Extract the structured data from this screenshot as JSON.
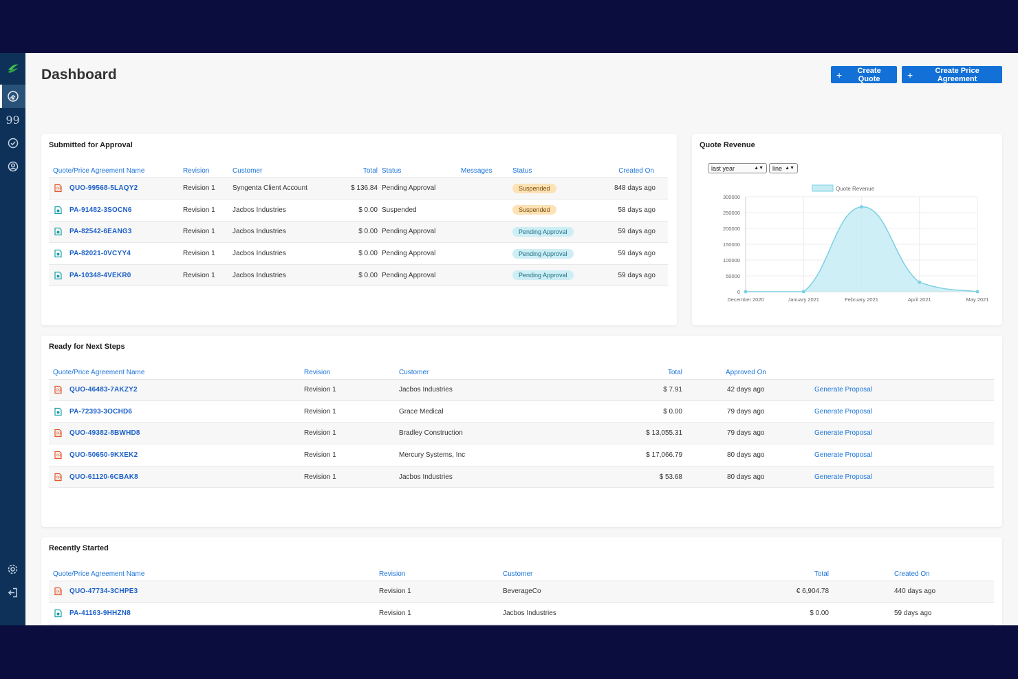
{
  "page": {
    "title": "Dashboard"
  },
  "header": {
    "create_quote_label": "Create Quote",
    "create_price_agreement_label": "Create Price Agreement"
  },
  "sidebar": {
    "items": [
      {
        "icon": "dashboard-icon",
        "active": true
      },
      {
        "icon": "quote-icon",
        "active": false
      },
      {
        "icon": "check-circle-icon",
        "active": false
      },
      {
        "icon": "user-circle-icon",
        "active": false
      }
    ],
    "bottom": [
      {
        "icon": "gear-icon"
      },
      {
        "icon": "logout-icon"
      }
    ]
  },
  "submitted": {
    "title": "Submitted for Approval",
    "headers": [
      "Quote/Price Agreement Name",
      "Revision",
      "Customer",
      "Total",
      "Status",
      "Messages",
      "Status",
      "Created On"
    ],
    "rows": [
      {
        "type": "quote",
        "name": "QUO-99568-5LAQY2",
        "revision": "Revision 1",
        "customer": "Syngenta Client Account",
        "total": "$ 136.84",
        "status": "Pending Approval",
        "messages": "",
        "badge": "Suspended",
        "badge_type": "suspended",
        "created": "848 days ago"
      },
      {
        "type": "pa",
        "name": "PA-91482-3SOCN6",
        "revision": "Revision 1",
        "customer": "Jacbos Industries",
        "total": "$ 0.00",
        "status": "Suspended",
        "messages": "",
        "badge": "Suspended",
        "badge_type": "suspended",
        "created": "58 days ago"
      },
      {
        "type": "pa",
        "name": "PA-82542-6EANG3",
        "revision": "Revision 1",
        "customer": "Jacbos Industries",
        "total": "$ 0.00",
        "status": "Pending Approval",
        "messages": "",
        "badge": "Pending Approval",
        "badge_type": "pending",
        "created": "59 days ago"
      },
      {
        "type": "pa",
        "name": "PA-82021-0VCYY4",
        "revision": "Revision 1",
        "customer": "Jacbos Industries",
        "total": "$ 0.00",
        "status": "Pending Approval",
        "messages": "",
        "badge": "Pending Approval",
        "badge_type": "pending",
        "created": "59 days ago"
      },
      {
        "type": "pa",
        "name": "PA-10348-4VEKR0",
        "revision": "Revision 1",
        "customer": "Jacbos Industries",
        "total": "$ 0.00",
        "status": "Pending Approval",
        "messages": "",
        "badge": "Pending Approval",
        "badge_type": "pending",
        "created": "59 days ago"
      }
    ]
  },
  "revenue": {
    "title": "Quote Revenue",
    "period_select": "last year",
    "chart_type_select": "line"
  },
  "chart_data": {
    "type": "area",
    "categories": [
      "December 2020",
      "January 2021",
      "February 2021",
      "April 2021",
      "May 2021"
    ],
    "series": [
      {
        "name": "Quote Revenue",
        "values": [
          0,
          0,
          268000,
          30000,
          0
        ]
      }
    ],
    "ylim": [
      0,
      300000
    ],
    "yticks": [
      0,
      50000,
      100000,
      150000,
      200000,
      250000,
      300000
    ],
    "legend": "top-center",
    "grid": true,
    "colors": {
      "line": "#7cd0e4",
      "fill": "#c6ecf3"
    }
  },
  "ready": {
    "title": "Ready for Next Steps",
    "headers": [
      "Quote/Price Agreement Name",
      "Revision",
      "Customer",
      "Total",
      "Approved On",
      ""
    ],
    "rows": [
      {
        "type": "quote",
        "name": "QUO-46483-7AKZY2",
        "revision": "Revision 1",
        "customer": "Jacbos Industries",
        "total": "$ 7.91",
        "approved": "42 days ago",
        "action": "Generate Proposal"
      },
      {
        "type": "pa",
        "name": "PA-72393-3OCHD6",
        "revision": "Revision 1",
        "customer": "Grace Medical",
        "total": "$ 0.00",
        "approved": "79 days ago",
        "action": "Generate Proposal"
      },
      {
        "type": "quote",
        "name": "QUO-49382-8BWHD8",
        "revision": "Revision 1",
        "customer": "Bradley Construction",
        "total": "$ 13,055.31",
        "approved": "79 days ago",
        "action": "Generate Proposal"
      },
      {
        "type": "quote",
        "name": "QUO-50650-9KXEK2",
        "revision": "Revision 1",
        "customer": "Mercury Systems, Inc",
        "total": "$ 17,066.79",
        "approved": "80 days ago",
        "action": "Generate Proposal"
      },
      {
        "type": "quote",
        "name": "QUO-61120-6CBAK8",
        "revision": "Revision 1",
        "customer": "Jacbos Industries",
        "total": "$ 53.68",
        "approved": "80 days ago",
        "action": "Generate Proposal"
      }
    ]
  },
  "recent": {
    "title": "Recently Started",
    "headers": [
      "Quote/Price Agreement Name",
      "Revision",
      "Customer",
      "Total",
      "Created On"
    ],
    "rows": [
      {
        "type": "quote",
        "name": "QUO-47734-3CHPE3",
        "revision": "Revision 1",
        "customer": "BeverageCo",
        "total": "€ 6,904.78",
        "created": "440 days ago"
      },
      {
        "type": "pa",
        "name": "PA-41163-9HHZN8",
        "revision": "Revision 1",
        "customer": "Jacbos Industries",
        "total": "$ 0.00",
        "created": "59 days ago"
      }
    ]
  }
}
